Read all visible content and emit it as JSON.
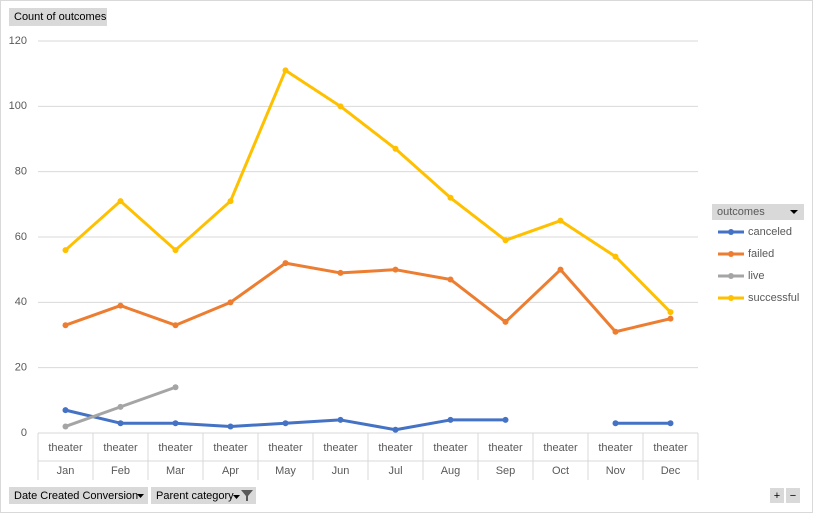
{
  "field_button": "Count of outcomes",
  "chart_data": {
    "type": "line",
    "categories": [
      "Jan",
      "Feb",
      "Mar",
      "Apr",
      "May",
      "Jun",
      "Jul",
      "Aug",
      "Sep",
      "Oct",
      "Nov",
      "Dec"
    ],
    "category_groups": [
      "theater",
      "theater",
      "theater",
      "theater",
      "theater",
      "theater",
      "theater",
      "theater",
      "theater",
      "theater",
      "theater",
      "theater"
    ],
    "series": [
      {
        "name": "canceled",
        "color": "#4472c4",
        "values": [
          7,
          3,
          3,
          2,
          3,
          4,
          1,
          4,
          4,
          null,
          3,
          3
        ]
      },
      {
        "name": "failed",
        "color": "#ed7d31",
        "values": [
          33,
          39,
          33,
          40,
          52,
          49,
          50,
          47,
          34,
          50,
          31,
          35
        ]
      },
      {
        "name": "live",
        "color": "#a5a5a5",
        "values": [
          2,
          8,
          14,
          null,
          null,
          null,
          null,
          null,
          null,
          null,
          null,
          null
        ]
      },
      {
        "name": "successful",
        "color": "#ffc000",
        "values": [
          56,
          71,
          56,
          71,
          111,
          100,
          87,
          72,
          59,
          65,
          54,
          37
        ]
      }
    ],
    "ylim": [
      0,
      120
    ],
    "yticks": [
      0,
      20,
      40,
      60,
      80,
      100,
      120
    ],
    "grid": true,
    "legend_position": "right",
    "legend_title": "outcomes"
  },
  "filter_buttons": [
    "Date Created Conversion",
    "Parent category"
  ],
  "zoom_buttons": [
    "+",
    "−"
  ]
}
